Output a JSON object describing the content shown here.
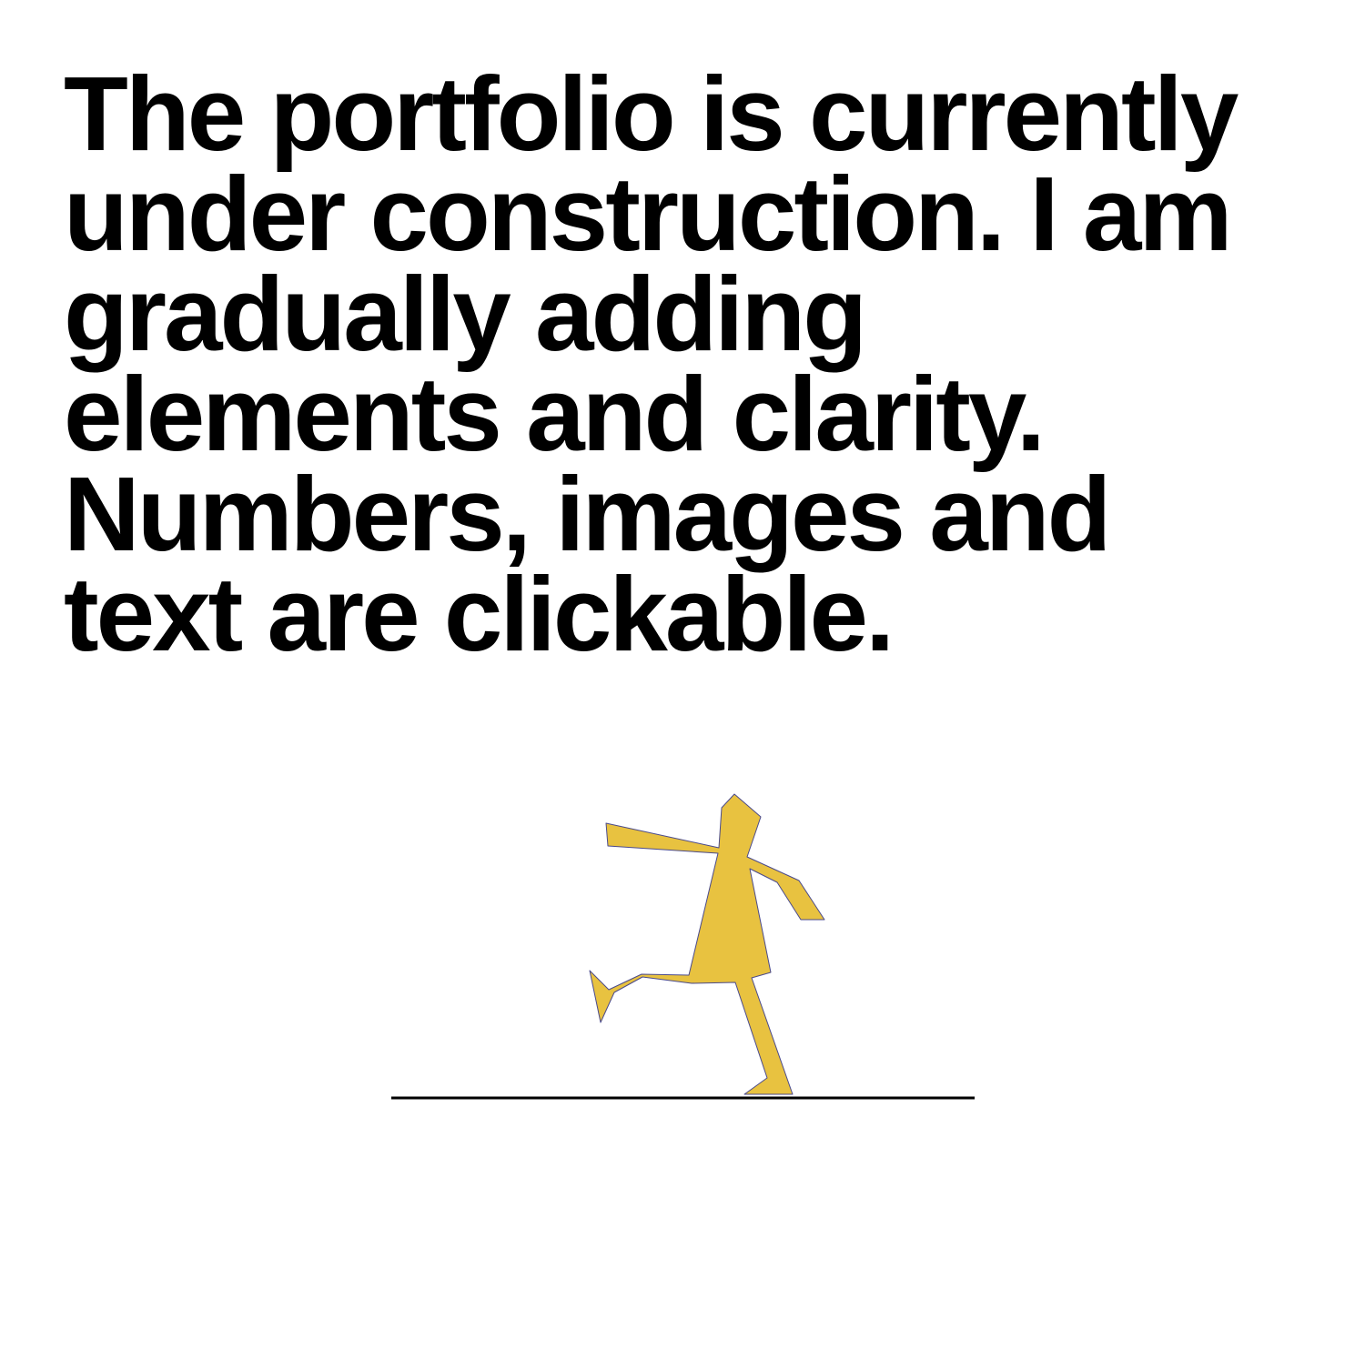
{
  "notice": {
    "lines": [
      "The portfolio is currently",
      "under construction. I am",
      "gradually adding",
      "elements and clarity.",
      "Numbers, images and",
      "text are clickable."
    ]
  },
  "illustration": {
    "figure_color": "#E8C240",
    "outline_color": "#4A4A8C",
    "ground_color": "#000000"
  }
}
